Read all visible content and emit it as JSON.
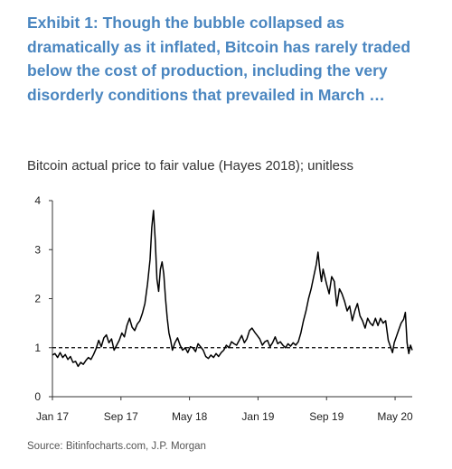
{
  "header": {
    "title": "Exhibit 1: Though the bubble collapsed as dramatically as it inflated, Bitcoin has rarely traded below the cost of production, including the very disorderly conditions that prevailed in March …"
  },
  "chart_data": {
    "type": "line",
    "title": "Bitcoin actual price to fair value (Hayes 2018); unitless",
    "xlabel": "",
    "ylabel": "",
    "ylim": [
      0,
      4
    ],
    "yticks": [
      "0",
      "1",
      "2",
      "3",
      "4"
    ],
    "xticks": [
      {
        "label": "Jan 17",
        "month": 0
      },
      {
        "label": "Sep 17",
        "month": 8
      },
      {
        "label": "May 18",
        "month": 16
      },
      {
        "label": "Jan 19",
        "month": 24
      },
      {
        "label": "Sep 19",
        "month": 32
      },
      {
        "label": "May 20",
        "month": 40
      }
    ],
    "x_unit": "months since Jan 2017",
    "reference_line": {
      "y": 1,
      "style": "dashed"
    },
    "grid": false,
    "legend": "none",
    "series": [
      {
        "color": "#000000",
        "points": [
          [
            0.0,
            0.85
          ],
          [
            0.3,
            0.88
          ],
          [
            0.6,
            0.8
          ],
          [
            0.9,
            0.9
          ],
          [
            1.2,
            0.8
          ],
          [
            1.5,
            0.86
          ],
          [
            1.8,
            0.76
          ],
          [
            2.1,
            0.82
          ],
          [
            2.4,
            0.7
          ],
          [
            2.7,
            0.72
          ],
          [
            3.0,
            0.62
          ],
          [
            3.3,
            0.7
          ],
          [
            3.6,
            0.66
          ],
          [
            3.9,
            0.74
          ],
          [
            4.2,
            0.8
          ],
          [
            4.5,
            0.76
          ],
          [
            4.8,
            0.86
          ],
          [
            5.1,
            0.98
          ],
          [
            5.4,
            1.15
          ],
          [
            5.7,
            1.02
          ],
          [
            6.0,
            1.2
          ],
          [
            6.3,
            1.26
          ],
          [
            6.6,
            1.1
          ],
          [
            6.9,
            1.18
          ],
          [
            7.2,
            0.95
          ],
          [
            7.5,
            1.05
          ],
          [
            7.8,
            1.15
          ],
          [
            8.1,
            1.3
          ],
          [
            8.4,
            1.22
          ],
          [
            8.7,
            1.45
          ],
          [
            9.0,
            1.6
          ],
          [
            9.3,
            1.42
          ],
          [
            9.6,
            1.35
          ],
          [
            9.9,
            1.48
          ],
          [
            10.2,
            1.55
          ],
          [
            10.5,
            1.7
          ],
          [
            10.8,
            1.9
          ],
          [
            11.1,
            2.3
          ],
          [
            11.4,
            2.8
          ],
          [
            11.6,
            3.45
          ],
          [
            11.8,
            3.8
          ],
          [
            12.0,
            3.2
          ],
          [
            12.2,
            2.4
          ],
          [
            12.4,
            2.15
          ],
          [
            12.6,
            2.6
          ],
          [
            12.8,
            2.75
          ],
          [
            13.0,
            2.5
          ],
          [
            13.2,
            2.0
          ],
          [
            13.4,
            1.6
          ],
          [
            13.6,
            1.3
          ],
          [
            13.8,
            1.15
          ],
          [
            14.0,
            0.95
          ],
          [
            14.3,
            1.1
          ],
          [
            14.6,
            1.2
          ],
          [
            14.9,
            1.05
          ],
          [
            15.2,
            0.95
          ],
          [
            15.5,
            1.0
          ],
          [
            15.8,
            0.9
          ],
          [
            16.1,
            1.02
          ],
          [
            16.4,
            1.0
          ],
          [
            16.7,
            0.92
          ],
          [
            17.0,
            1.08
          ],
          [
            17.3,
            1.02
          ],
          [
            17.6,
            0.95
          ],
          [
            17.9,
            0.82
          ],
          [
            18.2,
            0.78
          ],
          [
            18.5,
            0.85
          ],
          [
            18.8,
            0.8
          ],
          [
            19.1,
            0.88
          ],
          [
            19.4,
            0.82
          ],
          [
            19.7,
            0.9
          ],
          [
            20.0,
            0.95
          ],
          [
            20.3,
            1.05
          ],
          [
            20.6,
            1.0
          ],
          [
            20.9,
            1.12
          ],
          [
            21.2,
            1.08
          ],
          [
            21.5,
            1.05
          ],
          [
            21.8,
            1.15
          ],
          [
            22.1,
            1.25
          ],
          [
            22.4,
            1.1
          ],
          [
            22.7,
            1.18
          ],
          [
            23.0,
            1.35
          ],
          [
            23.3,
            1.4
          ],
          [
            23.6,
            1.32
          ],
          [
            23.9,
            1.25
          ],
          [
            24.2,
            1.18
          ],
          [
            24.5,
            1.05
          ],
          [
            24.8,
            1.12
          ],
          [
            25.1,
            1.15
          ],
          [
            25.4,
            1.02
          ],
          [
            25.7,
            1.1
          ],
          [
            26.0,
            1.22
          ],
          [
            26.3,
            1.08
          ],
          [
            26.6,
            1.12
          ],
          [
            26.9,
            1.05
          ],
          [
            27.2,
            1.0
          ],
          [
            27.5,
            1.08
          ],
          [
            27.8,
            1.03
          ],
          [
            28.1,
            1.1
          ],
          [
            28.4,
            1.05
          ],
          [
            28.7,
            1.12
          ],
          [
            29.0,
            1.3
          ],
          [
            29.3,
            1.55
          ],
          [
            29.6,
            1.75
          ],
          [
            29.9,
            2.0
          ],
          [
            30.2,
            2.2
          ],
          [
            30.5,
            2.45
          ],
          [
            30.8,
            2.7
          ],
          [
            31.0,
            2.95
          ],
          [
            31.2,
            2.6
          ],
          [
            31.4,
            2.35
          ],
          [
            31.6,
            2.6
          ],
          [
            31.8,
            2.45
          ],
          [
            32.0,
            2.3
          ],
          [
            32.3,
            2.1
          ],
          [
            32.6,
            2.45
          ],
          [
            32.9,
            2.35
          ],
          [
            33.2,
            1.85
          ],
          [
            33.5,
            2.2
          ],
          [
            33.8,
            2.1
          ],
          [
            34.1,
            1.95
          ],
          [
            34.4,
            1.75
          ],
          [
            34.7,
            1.85
          ],
          [
            35.0,
            1.55
          ],
          [
            35.3,
            1.75
          ],
          [
            35.6,
            1.9
          ],
          [
            35.9,
            1.65
          ],
          [
            36.2,
            1.55
          ],
          [
            36.5,
            1.4
          ],
          [
            36.8,
            1.6
          ],
          [
            37.1,
            1.5
          ],
          [
            37.4,
            1.45
          ],
          [
            37.7,
            1.6
          ],
          [
            38.0,
            1.45
          ],
          [
            38.3,
            1.6
          ],
          [
            38.6,
            1.5
          ],
          [
            38.9,
            1.55
          ],
          [
            39.2,
            1.15
          ],
          [
            39.5,
            1.0
          ],
          [
            39.7,
            0.9
          ],
          [
            39.9,
            1.1
          ],
          [
            40.1,
            1.2
          ],
          [
            40.4,
            1.35
          ],
          [
            40.7,
            1.5
          ],
          [
            41.0,
            1.58
          ],
          [
            41.2,
            1.72
          ],
          [
            41.4,
            1.1
          ],
          [
            41.6,
            0.88
          ],
          [
            41.8,
            1.05
          ],
          [
            42.0,
            0.95
          ]
        ]
      }
    ]
  },
  "source": "Source: Bitinfocharts.com, J.P. Morgan"
}
